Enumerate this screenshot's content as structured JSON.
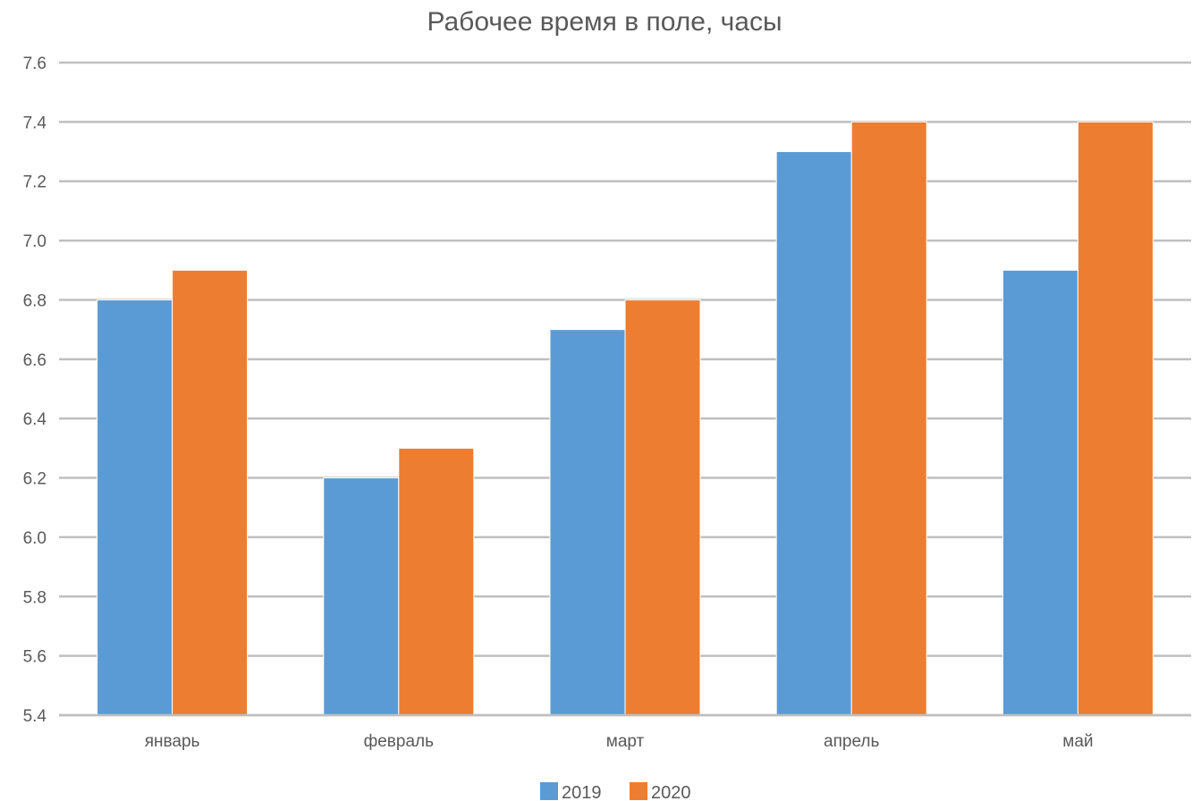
{
  "chart_data": {
    "type": "bar",
    "title": "Рабочее время в поле, часы",
    "xlabel": "",
    "ylabel": "",
    "categories": [
      "январь",
      "февраль",
      "март",
      "апрель",
      "май"
    ],
    "series": [
      {
        "name": "2019",
        "color": "#5B9BD5",
        "values": [
          6.8,
          6.2,
          6.7,
          7.3,
          6.9
        ]
      },
      {
        "name": "2020",
        "color": "#ED7D31",
        "values": [
          6.9,
          6.3,
          6.8,
          7.4,
          7.4
        ]
      }
    ],
    "ylim": [
      5.4,
      7.6
    ],
    "yticks": [
      "5.4",
      "5.6",
      "5.8",
      "6.0",
      "6.2",
      "6.4",
      "6.6",
      "6.8",
      "7.0",
      "7.2",
      "7.4",
      "7.6"
    ],
    "grid": true,
    "legend_position": "bottom"
  }
}
